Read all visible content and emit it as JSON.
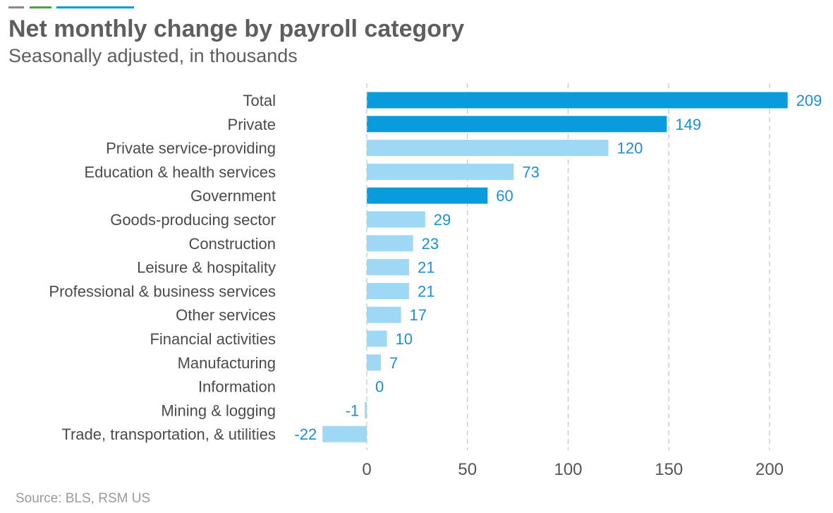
{
  "title": "Net monthly change by payroll category",
  "subtitle": "Seasonally adjusted, in thousands",
  "source": "Source: BLS, RSM US",
  "colors": {
    "highlight": "#0a9bdc",
    "normal": "#9fd8f4",
    "value_text": "#1d8fd1",
    "deco": [
      "#8a8a8a",
      "#4aa54a",
      "#0a9bdc"
    ]
  },
  "chart_data": {
    "type": "bar",
    "orientation": "horizontal",
    "title": "Net monthly change by payroll category",
    "subtitle": "Seasonally adjusted, in thousands",
    "xlabel": "",
    "ylabel": "",
    "xlim": [
      -22,
      209
    ],
    "xticks": [
      0,
      50,
      100,
      150,
      200
    ],
    "grid": true,
    "categories": [
      "Total",
      "Private",
      "Private service-providing",
      "Education & health services",
      "Government",
      "Goods-producing sector",
      "Construction",
      "Leisure & hospitality",
      "Professional & business services",
      "Other services",
      "Financial activities",
      "Manufacturing",
      "Information",
      "Mining & logging",
      "Trade, transportation, & utilities"
    ],
    "values": [
      209,
      149,
      120,
      73,
      60,
      29,
      23,
      21,
      21,
      17,
      10,
      7,
      0,
      -1,
      -22
    ],
    "highlighted": [
      true,
      true,
      false,
      false,
      true,
      false,
      false,
      false,
      false,
      false,
      false,
      false,
      false,
      false,
      false
    ]
  }
}
